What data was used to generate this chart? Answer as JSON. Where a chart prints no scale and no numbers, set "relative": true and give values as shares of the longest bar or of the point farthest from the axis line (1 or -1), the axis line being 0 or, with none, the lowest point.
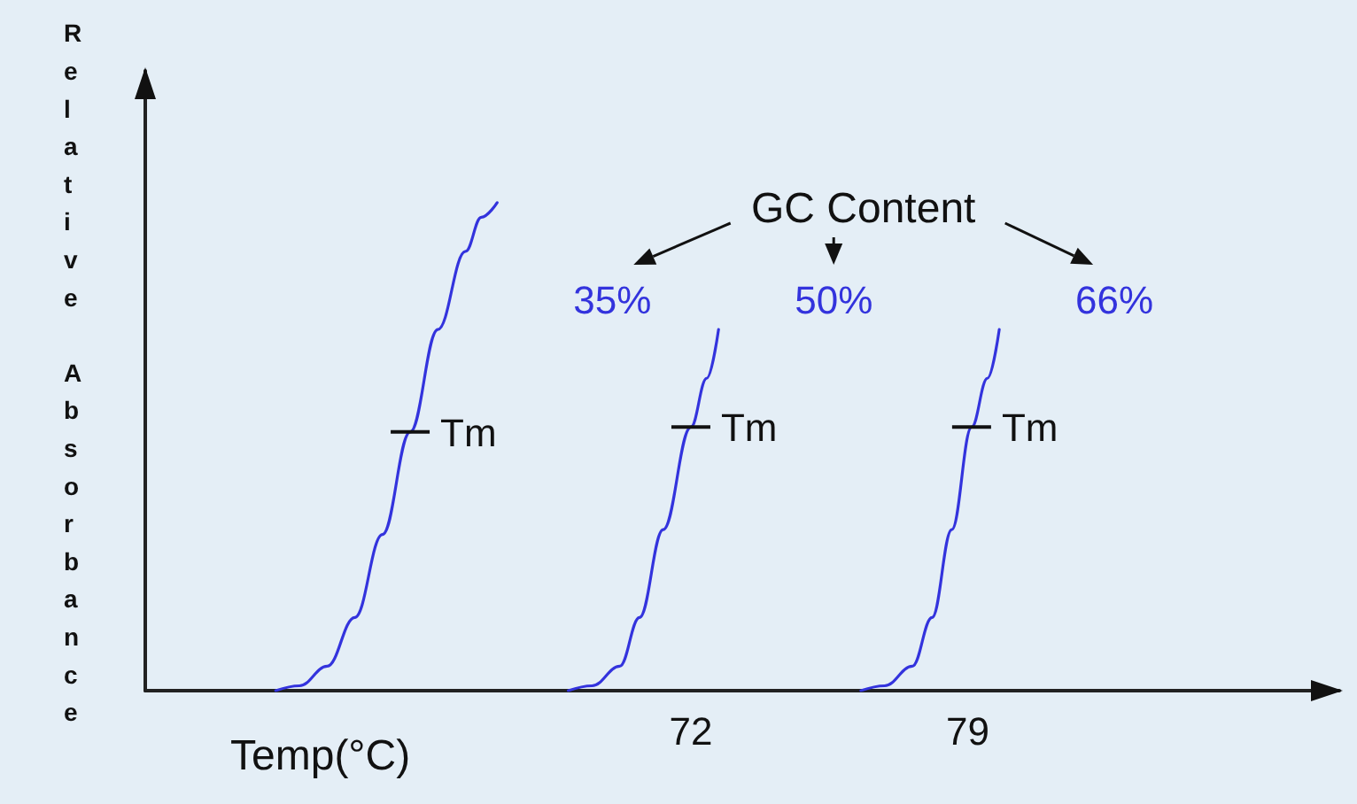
{
  "chart_data": {
    "type": "line",
    "xlabel": "Temp(°C)",
    "ylabel": "Relative Absorbance",
    "relative": true,
    "xlim": [
      58.2,
      88.4
    ],
    "xticks": [
      72,
      79
    ],
    "grid": false,
    "legend": false,
    "marker": "none",
    "line_style": "solid",
    "annotations": [
      "GC Content",
      {
        "text": "Tm",
        "x": 64.9,
        "y": 0.53
      },
      {
        "text": "Tm",
        "x": 72.0,
        "y": 0.54
      },
      {
        "text": "Tm",
        "x": 79.1,
        "y": 0.54
      }
    ],
    "series": [
      {
        "name": "35%",
        "color": "#3333dd",
        "x": [
          61.5,
          62.1,
          62.8,
          63.5,
          64.2,
          64.9,
          65.6,
          66.3,
          66.7,
          67.1
        ],
        "values": [
          0,
          0.01,
          0.05,
          0.15,
          0.32,
          0.53,
          0.74,
          0.9,
          0.97,
          1
        ]
      },
      {
        "name": "50%",
        "color": "#3333dd",
        "x": [
          68.9,
          69.5,
          70.2,
          70.7,
          71.3,
          72.0,
          72.4,
          72.7
        ],
        "values": [
          0,
          0.01,
          0.05,
          0.15,
          0.33,
          0.54,
          0.64,
          0.74
        ]
      },
      {
        "name": "66%",
        "color": "#3333dd",
        "x": [
          76.3,
          76.9,
          77.6,
          78.1,
          78.6,
          79.1,
          79.5,
          79.8
        ],
        "values": [
          0,
          0.01,
          0.05,
          0.15,
          0.33,
          0.54,
          0.64,
          0.74
        ]
      }
    ]
  }
}
